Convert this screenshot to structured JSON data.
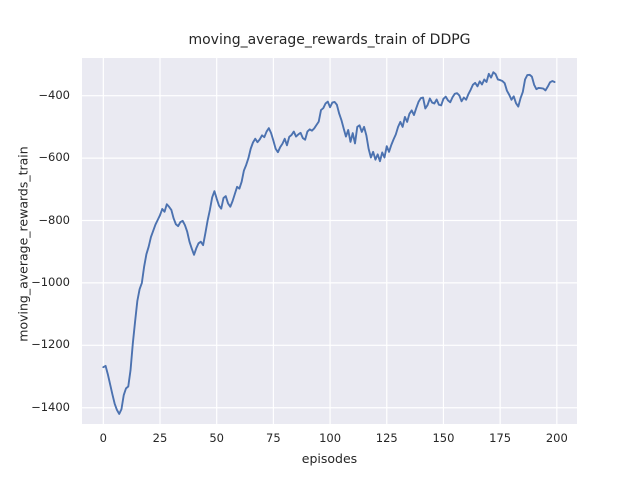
{
  "figure": {
    "title": "moving_average_rewards_train of DDPG"
  },
  "axes": {
    "xlabel": "episodes",
    "ylabel": "moving_average_rewards_train",
    "x_ticks": [
      0,
      25,
      50,
      75,
      100,
      125,
      150,
      175,
      200
    ],
    "y_ticks": [
      -400,
      -600,
      -800,
      -1000,
      -1200,
      -1400
    ],
    "x_tick_labels": [
      "0",
      "25",
      "50",
      "75",
      "100",
      "125",
      "150",
      "175",
      "200"
    ],
    "y_tick_labels": [
      "−400",
      "−600",
      "−800",
      "−1000",
      "−1200",
      "−1400"
    ],
    "grid": true,
    "legend": "none"
  },
  "colors": {
    "figure_background": "#FFFFFF",
    "plot_background": "#EAEAF2",
    "grid": "#FFFFFF",
    "line": "#4C72B0",
    "text": "#262626"
  },
  "chart_data": {
    "type": "line",
    "title": "moving_average_rewards_train of DDPG",
    "xlabel": "episodes",
    "ylabel": "moving_average_rewards_train",
    "xlim": [
      -9.4,
      208.9
    ],
    "ylim": [
      -1452.2,
      -279.2
    ],
    "x_start": 0,
    "x_step": 1,
    "series": [
      {
        "name": "moving_average_rewards_train",
        "color": "#4C72B0",
        "values": [
          -1270,
          -1266,
          -1293,
          -1325,
          -1357,
          -1387,
          -1407,
          -1420,
          -1405,
          -1360,
          -1338,
          -1332,
          -1280,
          -1195,
          -1125,
          -1058,
          -1020,
          -1000,
          -948,
          -908,
          -884,
          -853,
          -833,
          -813,
          -798,
          -783,
          -763,
          -772,
          -748,
          -756,
          -766,
          -793,
          -812,
          -818,
          -805,
          -801,
          -815,
          -836,
          -868,
          -890,
          -910,
          -889,
          -873,
          -868,
          -879,
          -841,
          -800,
          -766,
          -726,
          -706,
          -730,
          -752,
          -762,
          -728,
          -722,
          -745,
          -756,
          -738,
          -715,
          -692,
          -698,
          -676,
          -640,
          -622,
          -600,
          -570,
          -550,
          -538,
          -549,
          -540,
          -527,
          -533,
          -515,
          -504,
          -520,
          -544,
          -570,
          -581,
          -565,
          -554,
          -538,
          -559,
          -532,
          -526,
          -515,
          -531,
          -524,
          -519,
          -536,
          -541,
          -515,
          -508,
          -512,
          -505,
          -494,
          -483,
          -446,
          -440,
          -425,
          -419,
          -437,
          -422,
          -420,
          -429,
          -457,
          -478,
          -505,
          -531,
          -510,
          -548,
          -520,
          -553,
          -500,
          -495,
          -516,
          -500,
          -527,
          -570,
          -598,
          -580,
          -605,
          -588,
          -610,
          -582,
          -598,
          -562,
          -580,
          -558,
          -540,
          -524,
          -500,
          -484,
          -500,
          -468,
          -484,
          -458,
          -447,
          -462,
          -440,
          -420,
          -408,
          -406,
          -441,
          -430,
          -409,
          -422,
          -425,
          -412,
          -429,
          -431,
          -410,
          -403,
          -415,
          -421,
          -405,
          -394,
          -392,
          -399,
          -418,
          -406,
          -413,
          -395,
          -381,
          -365,
          -359,
          -370,
          -354,
          -364,
          -348,
          -356,
          -330,
          -342,
          -325,
          -331,
          -348,
          -350,
          -353,
          -360,
          -384,
          -397,
          -413,
          -402,
          -424,
          -435,
          -408,
          -388,
          -348,
          -334,
          -333,
          -339,
          -365,
          -379,
          -375,
          -376,
          -377,
          -383,
          -371,
          -357,
          -353,
          -356
        ]
      }
    ]
  }
}
